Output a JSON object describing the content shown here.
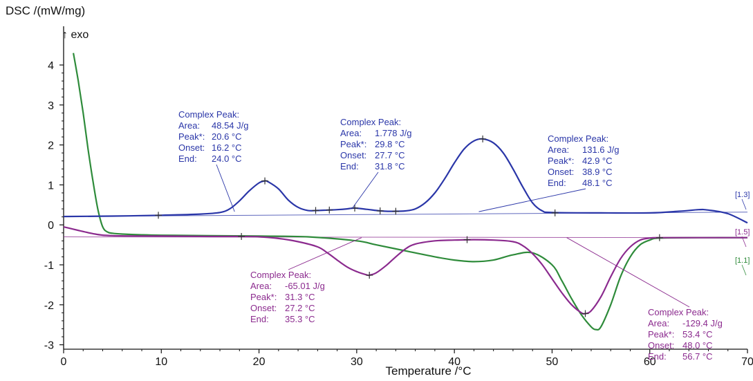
{
  "chart_data": {
    "type": "line",
    "ylabel": "DSC /(mW/mg)",
    "xlabel": "Temperature /°C",
    "exo_label": "↑ exo",
    "xlim": [
      0,
      70
    ],
    "ylim": [
      -3,
      4.5
    ],
    "xticks": [
      "0",
      "10",
      "20",
      "30",
      "40",
      "50",
      "60",
      "70"
    ],
    "yticks": [
      "4",
      "3",
      "2",
      "1",
      "0",
      "-1",
      "-2",
      "-3"
    ],
    "grid": false,
    "series": [
      {
        "name": "[1.3]",
        "color": "#2a36a8",
        "x": [
          0,
          5,
          10,
          14,
          16,
          17,
          18,
          19,
          20,
          20.6,
          21,
          22,
          23,
          24,
          25,
          26,
          27,
          28,
          29,
          29.8,
          31,
          32,
          33,
          34,
          35,
          36,
          37,
          38,
          39,
          40,
          41,
          42,
          42.9,
          44,
          45,
          46,
          47,
          48,
          49,
          50,
          55,
          60,
          63,
          65,
          66,
          68,
          70
        ],
        "y": [
          0.21,
          0.22,
          0.24,
          0.27,
          0.31,
          0.4,
          0.6,
          0.85,
          1.05,
          1.1,
          1.07,
          0.9,
          0.62,
          0.44,
          0.36,
          0.36,
          0.37,
          0.38,
          0.4,
          0.42,
          0.39,
          0.36,
          0.34,
          0.34,
          0.35,
          0.4,
          0.55,
          0.8,
          1.15,
          1.55,
          1.9,
          2.1,
          2.15,
          2.05,
          1.8,
          1.4,
          0.95,
          0.55,
          0.35,
          0.31,
          0.3,
          0.3,
          0.34,
          0.38,
          0.37,
          0.28,
          0.05
        ]
      },
      {
        "name": "[1.5]",
        "color": "#8b2a8e",
        "x": [
          0,
          3,
          5,
          10,
          15,
          18,
          20,
          22,
          24,
          26,
          27,
          28,
          29,
          30,
          31,
          31.3,
          32,
          33,
          34,
          35,
          36,
          38,
          40,
          42,
          44,
          46,
          47,
          48,
          49,
          50,
          51,
          52,
          53,
          53.4,
          54,
          55,
          56,
          57,
          58,
          59,
          60,
          61,
          65,
          70
        ],
        "y": [
          -0.05,
          -0.22,
          -0.27,
          -0.28,
          -0.29,
          -0.29,
          -0.3,
          -0.34,
          -0.42,
          -0.55,
          -0.7,
          -0.88,
          -1.05,
          -1.17,
          -1.25,
          -1.26,
          -1.2,
          -1.02,
          -0.8,
          -0.6,
          -0.48,
          -0.4,
          -0.38,
          -0.37,
          -0.38,
          -0.42,
          -0.52,
          -0.72,
          -1.0,
          -1.35,
          -1.7,
          -2.0,
          -2.2,
          -2.22,
          -2.15,
          -1.8,
          -1.3,
          -0.85,
          -0.55,
          -0.38,
          -0.33,
          -0.32,
          -0.32,
          -0.32
        ]
      },
      {
        "name": "[1.1]",
        "color": "#2e8b3a",
        "x": [
          1,
          1.5,
          2,
          2.5,
          3,
          3.5,
          4,
          4.5,
          5,
          6,
          8,
          10,
          15,
          20,
          25,
          30,
          32,
          35,
          38,
          40,
          42,
          44,
          46,
          48,
          50,
          51,
          52,
          53,
          54,
          54.5,
          55,
          56,
          57,
          58,
          59,
          60,
          61,
          65,
          70
        ],
        "y": [
          4.3,
          3.6,
          2.8,
          1.9,
          1.1,
          0.4,
          -0.05,
          -0.18,
          -0.21,
          -0.23,
          -0.25,
          -0.26,
          -0.27,
          -0.28,
          -0.3,
          -0.4,
          -0.5,
          -0.65,
          -0.8,
          -0.88,
          -0.92,
          -0.88,
          -0.75,
          -0.7,
          -1.0,
          -1.4,
          -1.85,
          -2.25,
          -2.55,
          -2.62,
          -2.55,
          -2.0,
          -1.3,
          -0.8,
          -0.5,
          -0.38,
          -0.33,
          -0.32,
          -0.32
        ]
      }
    ],
    "end_labels": [
      {
        "text": "[1.3]",
        "color": "#2a36a8"
      },
      {
        "text": "[1.5]",
        "color": "#8b2a8e"
      },
      {
        "text": "[1.1]",
        "color": "#2e8b3a"
      }
    ],
    "baselines": [
      {
        "color": "#2a36a8",
        "x": [
          0,
          70
        ],
        "y": [
          0.21,
          0.32
        ]
      },
      {
        "color": "#8b2a8e",
        "x": [
          0,
          70
        ],
        "y": [
          -0.3,
          -0.32
        ]
      }
    ],
    "markers": [
      {
        "color": "#2a36a8",
        "x": 9.7,
        "y": 0.24
      },
      {
        "color": "#2a36a8",
        "x": 20.6,
        "y": 1.1
      },
      {
        "color": "#2a36a8",
        "x": 25.8,
        "y": 0.36
      },
      {
        "color": "#2a36a8",
        "x": 27.2,
        "y": 0.37
      },
      {
        "color": "#2a36a8",
        "x": 29.8,
        "y": 0.42
      },
      {
        "color": "#2a36a8",
        "x": 32.4,
        "y": 0.35
      },
      {
        "color": "#2a36a8",
        "x": 34.0,
        "y": 0.34
      },
      {
        "color": "#2a36a8",
        "x": 42.9,
        "y": 2.15
      },
      {
        "color": "#2a36a8",
        "x": 50.3,
        "y": 0.3
      },
      {
        "color": "#8b2a8e",
        "x": 18.2,
        "y": -0.29
      },
      {
        "color": "#8b2a8e",
        "x": 31.3,
        "y": -1.26
      },
      {
        "color": "#8b2a8e",
        "x": 41.3,
        "y": -0.37
      },
      {
        "color": "#8b2a8e",
        "x": 53.4,
        "y": -2.22
      },
      {
        "color": "#8b2a8e",
        "x": 61.0,
        "y": -0.32
      }
    ],
    "annotations": [
      {
        "color": "#2a36a8",
        "lines": [
          {
            "label": "Complex Peak:",
            "value": ""
          },
          {
            "label": "Area:",
            "value": "48.54 J/g"
          },
          {
            "label": "Peak*:",
            "value": "20.6 °C"
          },
          {
            "label": "Onset:",
            "value": "16.2 °C"
          },
          {
            "label": "End:",
            "value": "24.0 °C"
          }
        ],
        "leader_to": {
          "x": 17.5,
          "y": 0.33
        }
      },
      {
        "color": "#2a36a8",
        "lines": [
          {
            "label": "Complex Peak:",
            "value": ""
          },
          {
            "label": "Area:",
            "value": "1.778 J/g"
          },
          {
            "label": "Peak*:",
            "value": "29.8 °C"
          },
          {
            "label": "Onset:",
            "value": "27.7 °C"
          },
          {
            "label": "End:",
            "value": "31.8 °C"
          }
        ],
        "leader_to": {
          "x": 29.5,
          "y": 0.4
        }
      },
      {
        "color": "#2a36a8",
        "lines": [
          {
            "label": "Complex Peak:",
            "value": ""
          },
          {
            "label": "Area:",
            "value": "131.6 J/g"
          },
          {
            "label": "Peak*:",
            "value": "42.9 °C"
          },
          {
            "label": "Onset:",
            "value": "38.9 °C"
          },
          {
            "label": "End:",
            "value": "48.1 °C"
          }
        ],
        "leader_to": {
          "x": 42.5,
          "y": 0.33
        }
      },
      {
        "color": "#8b2a8e",
        "lines": [
          {
            "label": "Complex Peak:",
            "value": ""
          },
          {
            "label": "Area:",
            "value": "-65.01 J/g"
          },
          {
            "label": "Peak*:",
            "value": "31.3 °C"
          },
          {
            "label": "Onset:",
            "value": "27.2 °C"
          },
          {
            "label": "End:",
            "value": "35.3 °C"
          }
        ],
        "leader_to": {
          "x": 30.5,
          "y": -0.32
        }
      },
      {
        "color": "#8b2a8e",
        "lines": [
          {
            "label": "Complex Peak:",
            "value": ""
          },
          {
            "label": "Area:",
            "value": "-129.4 J/g"
          },
          {
            "label": "Peak*:",
            "value": "53.4 °C"
          },
          {
            "label": "Onset:",
            "value": "48.0 °C"
          },
          {
            "label": "End:",
            "value": "56.7 °C"
          }
        ],
        "leader_to": {
          "x": 51.5,
          "y": -0.32
        }
      }
    ]
  }
}
